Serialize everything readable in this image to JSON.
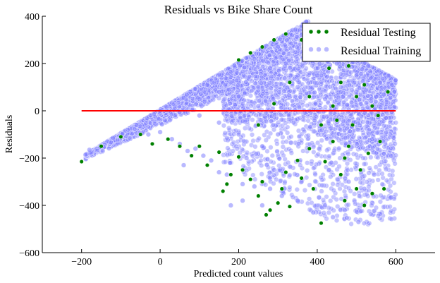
{
  "chart_data": {
    "type": "scatter",
    "title": "Residuals vs Bike Share Count",
    "xlabel": "Predicted count values",
    "ylabel": "Residuals",
    "xlim": [
      -300,
      700
    ],
    "ylim": [
      -600,
      400
    ],
    "xticks": [
      -200,
      0,
      200,
      400,
      600
    ],
    "yticks": [
      -600,
      -400,
      -200,
      0,
      200,
      400
    ],
    "xtick_labels": [
      "−200",
      "0",
      "200",
      "400",
      "600"
    ],
    "ytick_labels": [
      "−600",
      "−400",
      "−200",
      "0",
      "200",
      "400"
    ],
    "grid": false,
    "legend_position": "top-right",
    "zero_line": {
      "y": 0,
      "x_from": -200,
      "x_to": 600,
      "color": "#ff0000"
    },
    "series": [
      {
        "name": "Residual Testing",
        "color": "#008000",
        "marker": "circle",
        "values": [
          {
            "x": -200,
            "y": -215
          },
          {
            "x": -150,
            "y": -150
          },
          {
            "x": -100,
            "y": -110
          },
          {
            "x": -50,
            "y": -100
          },
          {
            "x": -20,
            "y": -140
          },
          {
            "x": 20,
            "y": -120
          },
          {
            "x": 50,
            "y": -150
          },
          {
            "x": 80,
            "y": -190
          },
          {
            "x": 100,
            "y": -150
          },
          {
            "x": 120,
            "y": -230
          },
          {
            "x": 150,
            "y": -175
          },
          {
            "x": 160,
            "y": -340
          },
          {
            "x": 170,
            "y": -310
          },
          {
            "x": 180,
            "y": -270
          },
          {
            "x": 200,
            "y": -195
          },
          {
            "x": 210,
            "y": -250
          },
          {
            "x": 230,
            "y": -290
          },
          {
            "x": 250,
            "y": -360
          },
          {
            "x": 260,
            "y": -300
          },
          {
            "x": 270,
            "y": -440
          },
          {
            "x": 280,
            "y": -420
          },
          {
            "x": 300,
            "y": -390
          },
          {
            "x": 310,
            "y": -330
          },
          {
            "x": 320,
            "y": -260
          },
          {
            "x": 330,
            "y": -405
          },
          {
            "x": 350,
            "y": -210
          },
          {
            "x": 360,
            "y": -285
          },
          {
            "x": 380,
            "y": -160
          },
          {
            "x": 390,
            "y": -330
          },
          {
            "x": 410,
            "y": -475
          },
          {
            "x": 420,
            "y": -215
          },
          {
            "x": 440,
            "y": -130
          },
          {
            "x": 450,
            "y": -40
          },
          {
            "x": 460,
            "y": -270
          },
          {
            "x": 470,
            "y": -380
          },
          {
            "x": 480,
            "y": -150
          },
          {
            "x": 490,
            "y": -60
          },
          {
            "x": 500,
            "y": -330
          },
          {
            "x": 510,
            "y": -250
          },
          {
            "x": 520,
            "y": -400
          },
          {
            "x": 530,
            "y": -180
          },
          {
            "x": 540,
            "y": -350
          },
          {
            "x": 560,
            "y": -130
          },
          {
            "x": 570,
            "y": -330
          },
          {
            "x": 580,
            "y": 80
          },
          {
            "x": 200,
            "y": 215
          },
          {
            "x": 230,
            "y": 245
          },
          {
            "x": 260,
            "y": 270
          },
          {
            "x": 290,
            "y": 300
          },
          {
            "x": 320,
            "y": 325
          },
          {
            "x": 360,
            "y": 300
          },
          {
            "x": 400,
            "y": 280
          },
          {
            "x": 430,
            "y": 180
          },
          {
            "x": 460,
            "y": 120
          },
          {
            "x": 480,
            "y": 190
          },
          {
            "x": 500,
            "y": 60
          },
          {
            "x": 520,
            "y": 110
          },
          {
            "x": 540,
            "y": 20
          },
          {
            "x": 555,
            "y": -20
          },
          {
            "x": 440,
            "y": 20
          },
          {
            "x": 380,
            "y": 60
          },
          {
            "x": 330,
            "y": 120
          },
          {
            "x": 290,
            "y": 30
          },
          {
            "x": 250,
            "y": -60
          },
          {
            "x": 410,
            "y": -60
          },
          {
            "x": 470,
            "y": -200
          }
        ]
      },
      {
        "name": "Residual Training",
        "color": "#8080ff",
        "marker": "circle",
        "values": [
          {
            "x": -180,
            "y": -165
          },
          {
            "x": -120,
            "y": -115
          },
          {
            "x": -60,
            "y": -60
          },
          {
            "x": 0,
            "y": 0
          },
          {
            "x": 60,
            "y": 55
          },
          {
            "x": 120,
            "y": 110
          },
          {
            "x": 180,
            "y": 165
          },
          {
            "x": 240,
            "y": 220
          },
          {
            "x": 300,
            "y": 270
          },
          {
            "x": 360,
            "y": 320
          },
          {
            "x": 400,
            "y": 240
          },
          {
            "x": 450,
            "y": 200
          },
          {
            "x": 500,
            "y": 150
          },
          {
            "x": 530,
            "y": 190
          },
          {
            "x": 560,
            "y": 120
          },
          {
            "x": 590,
            "y": 110
          },
          {
            "x": 550,
            "y": 60
          },
          {
            "x": 575,
            "y": -30
          },
          {
            "x": 540,
            "y": -120
          },
          {
            "x": 545,
            "y": -270
          },
          {
            "x": 520,
            "y": -330
          },
          {
            "x": 505,
            "y": -470
          },
          {
            "x": 470,
            "y": -420
          },
          {
            "x": 440,
            "y": -450
          },
          {
            "x": 420,
            "y": -400
          },
          {
            "x": 390,
            "y": -430
          },
          {
            "x": 350,
            "y": -380
          },
          {
            "x": 310,
            "y": -360
          },
          {
            "x": 280,
            "y": -330
          },
          {
            "x": 240,
            "y": -320
          },
          {
            "x": 210,
            "y": -310
          },
          {
            "x": 170,
            "y": -270
          },
          {
            "x": 150,
            "y": -260
          },
          {
            "x": 130,
            "y": -210
          },
          {
            "x": 110,
            "y": -190
          },
          {
            "x": 90,
            "y": -160
          },
          {
            "x": 70,
            "y": -170
          },
          {
            "x": 50,
            "y": -140
          },
          {
            "x": 30,
            "y": -120
          },
          {
            "x": 0,
            "y": -90
          },
          {
            "x": -30,
            "y": -100
          },
          {
            "x": 180,
            "y": -400
          },
          {
            "x": 220,
            "y": -200
          },
          {
            "x": 260,
            "y": -150
          },
          {
            "x": 300,
            "y": -100
          },
          {
            "x": 340,
            "y": -50
          },
          {
            "x": 380,
            "y": 0
          },
          {
            "x": 420,
            "y": 50
          },
          {
            "x": 460,
            "y": 100
          },
          {
            "x": 500,
            "y": 0
          },
          {
            "x": 480,
            "y": -300
          },
          {
            "x": 100,
            "y": 50
          },
          {
            "x": 150,
            "y": 80
          },
          {
            "x": 200,
            "y": 60
          },
          {
            "x": 250,
            "y": 100
          },
          {
            "x": 280,
            "y": 180
          },
          {
            "x": 320,
            "y": 200
          },
          {
            "x": 200,
            "y": -100
          },
          {
            "x": 150,
            "y": -50
          },
          {
            "x": 100,
            "y": -20
          },
          {
            "x": 250,
            "y": 20
          },
          {
            "x": 350,
            "y": 100
          },
          {
            "x": 400,
            "y": 150
          },
          {
            "x": 430,
            "y": -250
          },
          {
            "x": 360,
            "y": -300
          },
          {
            "x": 290,
            "y": -250
          },
          {
            "x": 260,
            "y": -400
          },
          {
            "x": 210,
            "y": -380
          },
          {
            "x": 60,
            "y": -230
          }
        ]
      }
    ]
  }
}
